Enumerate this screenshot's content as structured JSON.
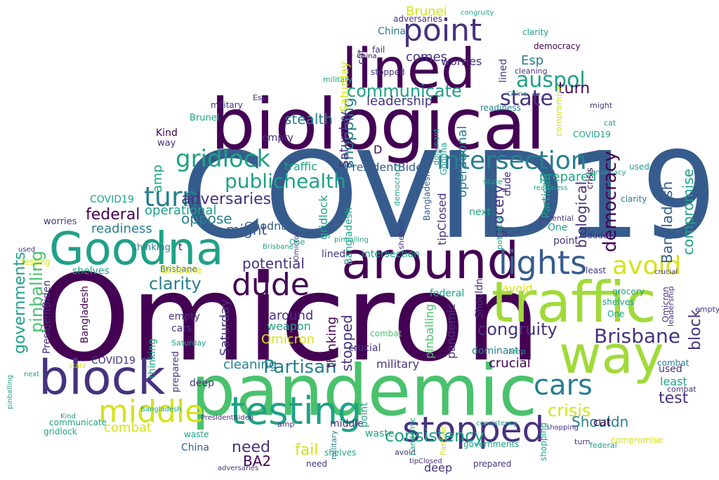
{
  "wordcloud": {
    "colors": {
      "dark_purple": "#440154",
      "purple": "#46327e",
      "blue": "#365c8d",
      "teal_blue": "#277f8e",
      "teal": "#1fa187",
      "green": "#4ac16d",
      "light_green": "#a0da39",
      "yellow": "#d5e21a"
    },
    "words": {
      "omicron": "Omicron",
      "covid19": "COVID19",
      "biological": "biological",
      "pandemic": "pandemic",
      "traffic": "traffic",
      "lined": "lined",
      "around": "around",
      "goodna": "Goodna",
      "way": "way",
      "block": "block",
      "testing": "testing",
      "stopped": "stopped",
      "middle": "middle",
      "point": "point",
      "intersection": "intersection",
      "gridlock": "gridlock",
      "publichealth": "publichealth",
      "dude": "dude",
      "lights": "lights",
      "avoid": "avoid",
      "cars": "cars",
      "brisbane": "Brisbane",
      "congruity": "congruity",
      "communicate": "communicate",
      "auspol": "auspol",
      "turn": "turn",
      "state": "state",
      "leadership": "leadership",
      "stealth": "stealth",
      "adversaries": "adversaries",
      "federal": "federal",
      "operational": "operational",
      "readiness": "readiness",
      "might": "might",
      "oppose": "oppose",
      "potential": "potential",
      "governments": "governments",
      "pinballing": "pinballing",
      "clarity": "clarity",
      "shelves": "shelves",
      "partisan": "Partisan",
      "consistency": "consistency",
      "crisis": "crisis",
      "shouldn": "Shouldn",
      "test": "test",
      "need": "need",
      "fail": "fail",
      "ba2": "BA2",
      "combat": "combat",
      "waste": "waste",
      "china": "China",
      "worries": "worries",
      "comes": "comes",
      "kind": "Kind",
      "democracy": "democracy",
      "esp": "Esp",
      "brunei": "Brunei",
      "shopping": "shopping",
      "saturday": "Saturday",
      "prepared": "prepared",
      "compromise": "compromise",
      "bangladesh": "Bangladesh",
      "next": "next",
      "one": "One",
      "crucial": "crucial",
      "military": "military",
      "dominant": "dominant",
      "weapon": "weapon",
      "empty": "empty",
      "grocery": "grocery",
      "thinking": "thinking",
      "cleaning": "cleaning",
      "least": "least",
      "used": "used",
      "deep": "deep",
      "cat": "cat",
      "damn": "damn",
      "amp": "amp",
      "presidentbiden": "PresidentBiden",
      "tipclosed": "tipClosed",
      "d": "D",
      "t": "t"
    }
  }
}
